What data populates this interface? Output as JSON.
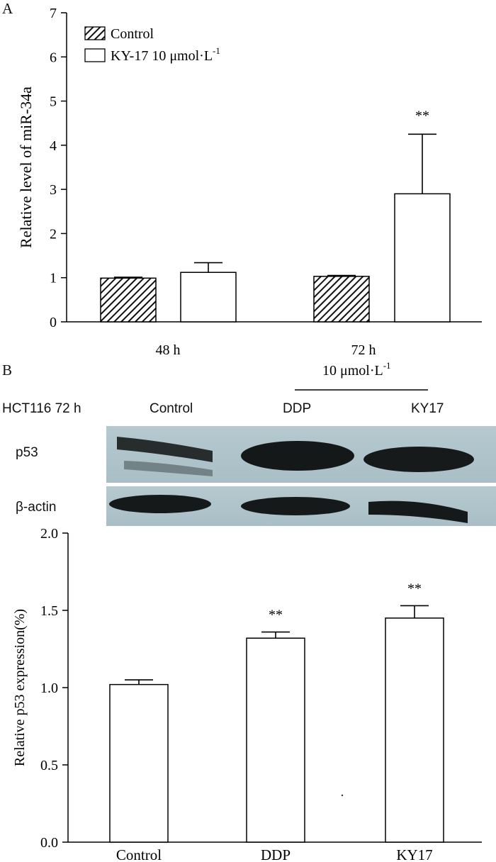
{
  "panel_a_letter": "A",
  "panel_b_letter": "B",
  "sig_marker": "**",
  "western_blot": {
    "condition_label": "HCT116 72 h",
    "lanes": [
      "Control",
      "DDP",
      "KY17"
    ],
    "dose_label": "10 μmol·L",
    "dose_exponent": "-1",
    "rows": [
      "p53",
      "β-actin"
    ]
  },
  "chart_data": [
    {
      "type": "bar",
      "title": "",
      "xlabel": "",
      "ylabel": "Relative level of miR-34a",
      "ylim": [
        0,
        7
      ],
      "yticks": [
        "0",
        "1",
        "2",
        "3",
        "4",
        "5",
        "6",
        "7"
      ],
      "categories": [
        "48 h",
        "72 h"
      ],
      "category_sublabel": [
        "",
        "10 μmol·L"
      ],
      "category_sublabel_exponent": [
        "",
        "-1"
      ],
      "legend_position": "top-left",
      "series": [
        {
          "name": "Control",
          "fill": "hatched",
          "values": [
            0.99,
            1.03
          ],
          "errors": [
            0.02,
            0.02
          ],
          "significance": [
            "",
            ""
          ]
        },
        {
          "name": "KY-17 10 μmol·L",
          "name_exponent": "-1",
          "fill": "open",
          "values": [
            1.12,
            2.9
          ],
          "errors": [
            0.22,
            1.35
          ],
          "significance": [
            "",
            "**"
          ]
        }
      ]
    },
    {
      "type": "bar",
      "title": "",
      "xlabel": "",
      "ylabel": "Relative p53 expression(%)",
      "ylim": [
        0,
        2.0
      ],
      "yticks": [
        "0.0",
        "0.5",
        "1.0",
        "1.5",
        "2.0"
      ],
      "categories": [
        "Control",
        "DDP",
        "KY17"
      ],
      "values": [
        1.02,
        1.32,
        1.45
      ],
      "errors": [
        0.03,
        0.04,
        0.08
      ],
      "significance": [
        "",
        "**",
        "**"
      ]
    }
  ]
}
